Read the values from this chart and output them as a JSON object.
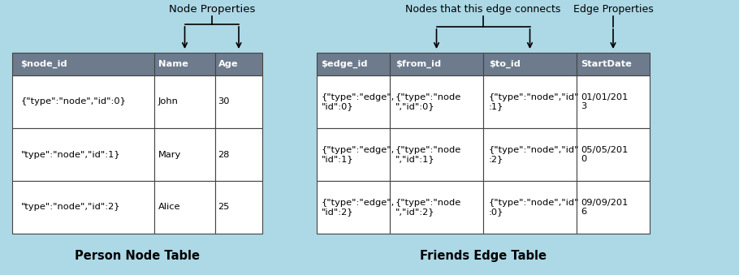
{
  "bg_color": "#add8e6",
  "header_color": "#6d7b8d",
  "header_text_color": "#ffffff",
  "cell_bg_color": "#ffffff",
  "border_color": "#444444",
  "title_color": "#000000",
  "annotation_color": "#000000",
  "figsize": [
    9.1,
    3.39
  ],
  "dpi": 100,
  "node_table": {
    "title": "Person Node Table",
    "label": "Node Properties",
    "headers": [
      "$node_id",
      "Name",
      "Age"
    ],
    "rows": [
      [
        "{\"type\":\"node\",\"id\":0}",
        "John",
        "30"
      ],
      [
        "\"type\":\"node\",\"id\":1}",
        "Mary",
        "28"
      ],
      [
        "\"type\":\"node\",\"id\":2}",
        "Alice",
        "25"
      ]
    ]
  },
  "edge_table": {
    "title": "Friends Edge Table",
    "label1": "Nodes that this edge connects",
    "label2": "Edge Properties",
    "headers": [
      "$edge_id",
      "$from_id",
      "$to_id",
      "StartDate"
    ],
    "rows": [
      [
        "{\"type\":\"edge\",\n\"id\":0}",
        "{\"type\":\"node\n\",\"id\":0}",
        "{\"type\":\"node\",\"id\"\n:1}",
        "01/01/201\n3"
      ],
      [
        "{\"type\":\"edge\",\n\"id\":1}",
        "{\"type\":\"node\n\",\"id\":1}",
        "{\"type\":\"node\",\"id\"\n:2}",
        "05/05/201\n0"
      ],
      [
        "{\"type\":\"edge\",\n\"id\":2}",
        "{\"type\":\"node\n\",\"id\":2}",
        "{\"type\":\"node\",\"id\"\n:0}",
        "09/09/201\n6"
      ]
    ]
  }
}
